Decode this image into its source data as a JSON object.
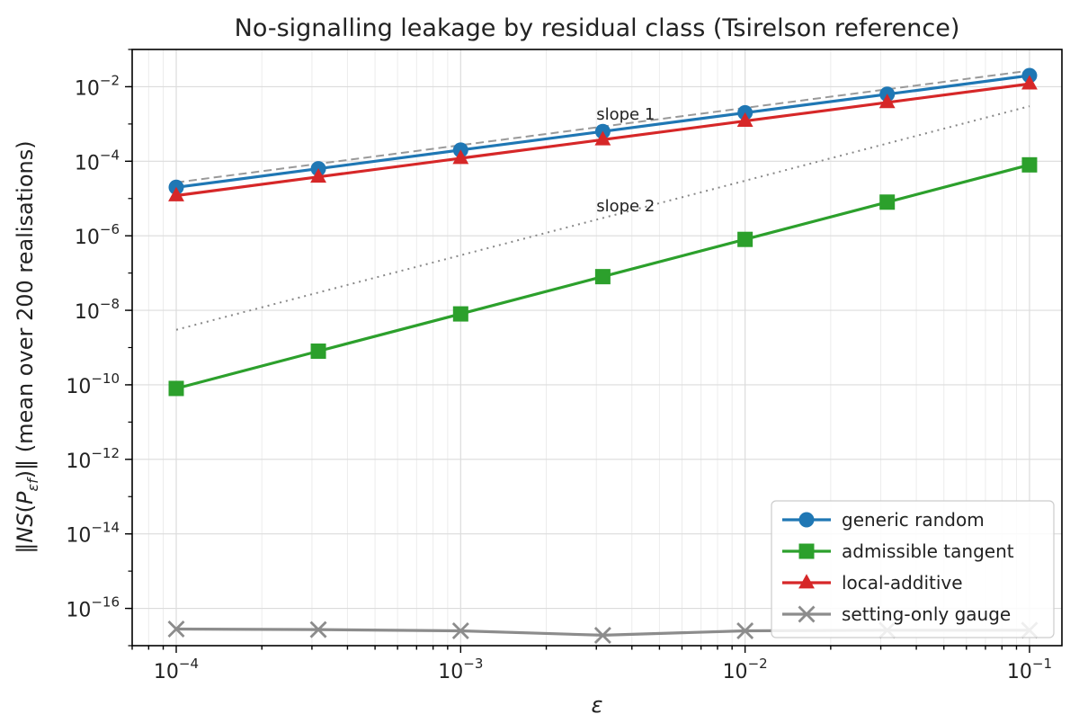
{
  "chart_data": {
    "type": "line",
    "title": "No-signalling leakage by residual class (Tsirelson reference)",
    "xlabel": "ε",
    "ylabel_parts": {
      "lead": "‖",
      "ns": "NS",
      "paren_open": "(",
      "p": "P",
      "sub": "εf",
      "paren_close": ")",
      "trail": "‖ (mean over 200 realisations)"
    },
    "x_scale": "log",
    "y_scale": "log",
    "xlim": [
      7e-05,
      0.13
    ],
    "ylim": [
      1e-17,
      0.1
    ],
    "x_ticks": [
      {
        "value": 0.0001,
        "base": "10",
        "exp": "−4"
      },
      {
        "value": 0.001,
        "base": "10",
        "exp": "−3"
      },
      {
        "value": 0.01,
        "base": "10",
        "exp": "−2"
      },
      {
        "value": 0.1,
        "base": "10",
        "exp": "−1"
      }
    ],
    "y_ticks": [
      {
        "value": 0.01,
        "base": "10",
        "exp": "−2"
      },
      {
        "value": 0.0001,
        "base": "10",
        "exp": "−4"
      },
      {
        "value": 1e-06,
        "base": "10",
        "exp": "−6"
      },
      {
        "value": 1e-08,
        "base": "10",
        "exp": "−8"
      },
      {
        "value": 1e-10,
        "base": "10",
        "exp": "−10"
      },
      {
        "value": 1e-12,
        "base": "10",
        "exp": "−12"
      },
      {
        "value": 1e-14,
        "base": "10",
        "exp": "−14"
      },
      {
        "value": 1e-16,
        "base": "10",
        "exp": "−16"
      }
    ],
    "grid": true,
    "legend_position": "bottom-right",
    "x": [
      0.0001,
      0.000316,
      0.001,
      0.00316,
      0.01,
      0.0316,
      0.1
    ],
    "series": [
      {
        "name": "generic random",
        "color": "#1f77b4",
        "marker": "circle",
        "values": [
          2e-05,
          6.3e-05,
          0.0002,
          0.00063,
          0.002,
          0.0063,
          0.02
        ]
      },
      {
        "name": "admissible tangent",
        "color": "#2ca02c",
        "marker": "square",
        "values": [
          8e-11,
          8e-10,
          8e-09,
          8e-08,
          8e-07,
          8e-06,
          8e-05
        ]
      },
      {
        "name": "local-additive",
        "color": "#d62728",
        "marker": "triangle",
        "values": [
          1.2e-05,
          3.8e-05,
          0.00012,
          0.00038,
          0.0012,
          0.0038,
          0.012
        ]
      },
      {
        "name": "setting-only gauge",
        "color": "#8c8c8c",
        "marker": "x",
        "values": [
          2.8e-17,
          2.7e-17,
          2.5e-17,
          1.9e-17,
          2.5e-17,
          2.6e-17,
          2.6e-17
        ]
      }
    ],
    "reference_lines": [
      {
        "label": "slope 1",
        "style": "dashed",
        "color": "#999999",
        "x": [
          0.0001,
          0.1
        ],
        "values": [
          2.7e-05,
          0.027
        ],
        "label_at": [
          0.003,
          0.0013
        ]
      },
      {
        "label": "slope 2",
        "style": "dotted",
        "color": "#888888",
        "x": [
          0.0001,
          0.1
        ],
        "values": [
          3e-09,
          0.003
        ],
        "label_at": [
          0.003,
          4.5e-06
        ]
      }
    ]
  }
}
